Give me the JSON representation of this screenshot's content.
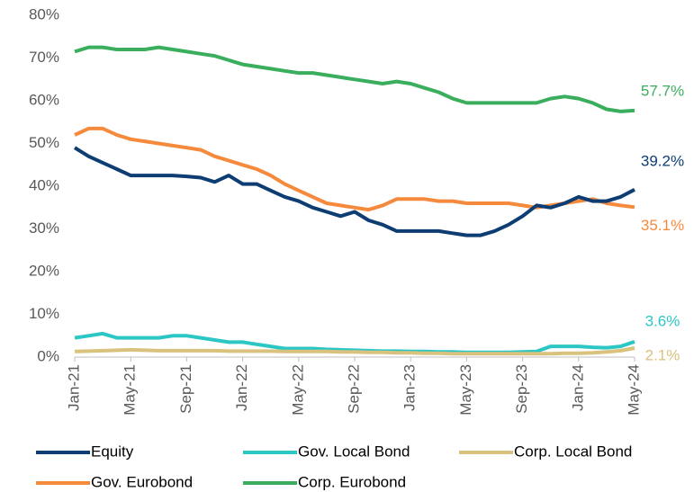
{
  "chart_data": {
    "type": "line",
    "categories": [
      "Jan-21",
      null,
      null,
      null,
      "May-21",
      null,
      null,
      null,
      "Sep-21",
      null,
      null,
      null,
      "Jan-22",
      null,
      null,
      null,
      "May-22",
      null,
      null,
      null,
      "Sep-22",
      null,
      null,
      null,
      "Jan-23",
      null,
      null,
      null,
      "May-23",
      null,
      null,
      null,
      "Sep-23",
      null,
      null,
      null,
      "Jan-24",
      null,
      null,
      null,
      "May-24"
    ],
    "series": [
      {
        "name": "Equity",
        "color": "#0d3d73",
        "values": [
          49,
          47,
          45.5,
          44,
          42.5,
          42.5,
          42.5,
          42.5,
          42.3,
          42,
          41,
          42.5,
          40.5,
          40.5,
          39,
          37.5,
          36.5,
          35,
          34,
          33,
          34,
          32,
          31,
          29.5,
          29.5,
          29.5,
          29.5,
          29,
          28.5,
          28.5,
          29.5,
          31,
          33,
          35.5,
          35,
          36,
          37.5,
          36.5,
          36.5,
          37.5,
          39.2
        ],
        "value_labels": [
          null,
          null,
          null,
          null,
          null,
          null,
          null,
          null,
          null,
          null,
          null,
          null,
          null,
          null,
          null,
          null,
          null,
          null,
          null,
          null,
          null,
          null,
          null,
          null,
          null,
          null,
          null,
          null,
          null,
          null,
          null,
          null,
          null,
          null,
          null,
          null,
          null,
          null,
          null,
          null,
          "39.2%"
        ]
      },
      {
        "name": "Gov. Local Bond",
        "color": "#2cc7c5",
        "values": [
          4.5,
          5,
          5.5,
          4.5,
          4.5,
          4.5,
          4.5,
          5,
          5,
          4.5,
          4,
          3.5,
          3.5,
          3,
          2.5,
          2,
          2,
          2,
          1.8,
          1.7,
          1.6,
          1.5,
          1.4,
          1.4,
          1.3,
          1.3,
          1.2,
          1.2,
          1.1,
          1.1,
          1.1,
          1.1,
          1.2,
          1.3,
          2.5,
          2.5,
          2.5,
          2.3,
          2.2,
          2.5,
          3.6
        ],
        "value_labels": [
          null,
          null,
          null,
          null,
          null,
          null,
          null,
          null,
          null,
          null,
          null,
          null,
          null,
          null,
          null,
          null,
          null,
          null,
          null,
          null,
          null,
          null,
          null,
          null,
          null,
          null,
          null,
          null,
          null,
          null,
          null,
          null,
          null,
          null,
          null,
          null,
          null,
          null,
          null,
          null,
          "3.6%"
        ]
      },
      {
        "name": "Corp. Local Bond",
        "color": "#d9c27d",
        "values": [
          1.3,
          1.4,
          1.5,
          1.6,
          1.7,
          1.6,
          1.5,
          1.5,
          1.5,
          1.5,
          1.5,
          1.4,
          1.4,
          1.4,
          1.4,
          1.3,
          1.3,
          1.3,
          1.3,
          1.2,
          1.2,
          1.1,
          1.1,
          1.0,
          1.0,
          0.9,
          0.9,
          0.8,
          0.8,
          0.8,
          0.8,
          0.8,
          0.8,
          0.8,
          0.8,
          0.9,
          0.9,
          1.0,
          1.2,
          1.5,
          2.1
        ],
        "value_labels": [
          null,
          null,
          null,
          null,
          null,
          null,
          null,
          null,
          null,
          null,
          null,
          null,
          null,
          null,
          null,
          null,
          null,
          null,
          null,
          null,
          null,
          null,
          null,
          null,
          null,
          null,
          null,
          null,
          null,
          null,
          null,
          null,
          null,
          null,
          null,
          null,
          null,
          null,
          null,
          null,
          "2.1%"
        ]
      },
      {
        "name": "Gov. Eurobond",
        "color": "#f58a3c",
        "values": [
          52,
          53.5,
          53.5,
          52,
          51,
          50.5,
          50,
          49.5,
          49,
          48.5,
          47,
          46,
          45,
          44,
          42.5,
          40.5,
          39,
          37.5,
          36,
          35.5,
          35,
          34.5,
          35.5,
          37,
          37,
          37,
          36.5,
          36.5,
          36,
          36,
          36,
          36,
          35.5,
          35,
          35.5,
          36,
          36.5,
          37,
          36,
          35.5,
          35.1
        ],
        "value_labels": [
          null,
          null,
          null,
          null,
          null,
          null,
          null,
          null,
          null,
          null,
          null,
          null,
          null,
          null,
          null,
          null,
          null,
          null,
          null,
          null,
          null,
          null,
          null,
          null,
          null,
          null,
          null,
          null,
          null,
          null,
          null,
          null,
          null,
          null,
          null,
          null,
          null,
          null,
          null,
          null,
          "35.1%"
        ]
      },
      {
        "name": "Corp. Eurobond",
        "color": "#3aae5c",
        "values": [
          71.5,
          72.5,
          72.5,
          72,
          72,
          72,
          72.5,
          72,
          71.5,
          71,
          70.5,
          69.5,
          68.5,
          68,
          67.5,
          67,
          66.5,
          66.5,
          66,
          65.5,
          65,
          64.5,
          64,
          64.5,
          64,
          63,
          62,
          60.5,
          59.5,
          59.5,
          59.5,
          59.5,
          59.5,
          59.5,
          60.5,
          61,
          60.5,
          59.5,
          58,
          57.5,
          57.7
        ],
        "value_labels": [
          null,
          null,
          null,
          null,
          null,
          null,
          null,
          null,
          null,
          null,
          null,
          null,
          null,
          null,
          null,
          null,
          null,
          null,
          null,
          null,
          null,
          null,
          null,
          null,
          null,
          null,
          null,
          null,
          null,
          null,
          null,
          null,
          null,
          null,
          null,
          null,
          null,
          null,
          null,
          null,
          "57.7%"
        ]
      }
    ],
    "ylim": [
      0,
      80
    ],
    "yticks": [
      {
        "value": 0,
        "label": "0%"
      },
      {
        "value": 10,
        "label": "10%"
      },
      {
        "value": 20,
        "label": "20%"
      },
      {
        "value": 30,
        "label": "30%"
      },
      {
        "value": 40,
        "label": "40%"
      },
      {
        "value": 50,
        "label": "50%"
      },
      {
        "value": 60,
        "label": "60%"
      },
      {
        "value": 70,
        "label": "70%"
      },
      {
        "value": 80,
        "label": "80%"
      }
    ],
    "grid": false
  }
}
